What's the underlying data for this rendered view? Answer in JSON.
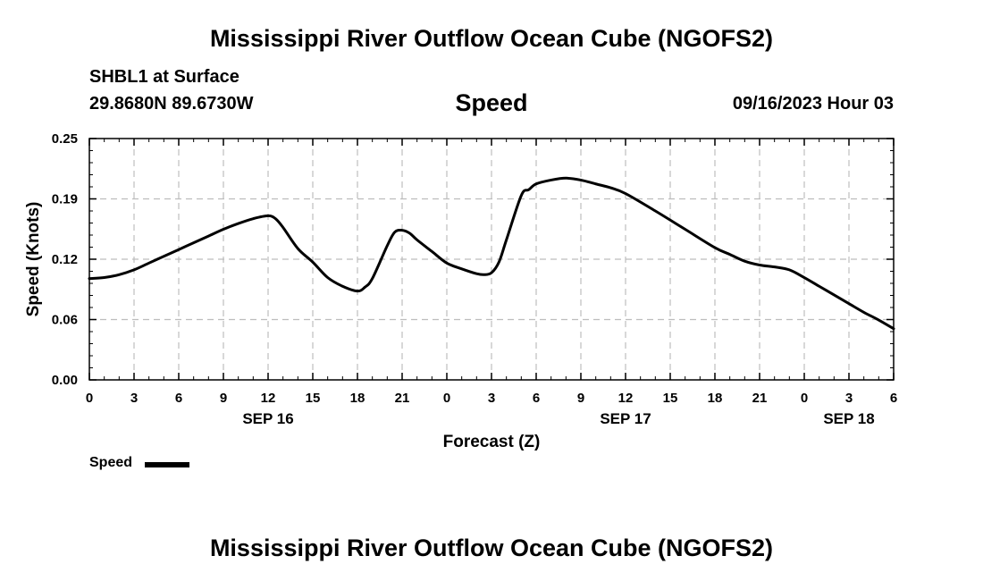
{
  "header": {
    "title": "Mississippi River Outflow Ocean Cube (NGOFS2)",
    "station": "SHBL1 at Surface",
    "coordinates": "29.8680N  89.6730W",
    "datetime": "09/16/2023 Hour 03"
  },
  "footer": {
    "title": "Mississippi River Outflow Ocean Cube (NGOFS2)"
  },
  "legend": {
    "label": "Speed"
  },
  "chart_data": {
    "type": "line",
    "title": "Speed",
    "xlabel": "Forecast (Z)",
    "ylabel": "Speed (Knots)",
    "xlim": [
      0,
      54
    ],
    "ylim": [
      0,
      0.25
    ],
    "yticks": [
      "0.00",
      "0.06",
      "0.12",
      "0.19",
      "0.25"
    ],
    "ytick_values": [
      0.0,
      0.0625,
      0.125,
      0.1875,
      0.25
    ],
    "xticks": [
      {
        "x": 0,
        "label": "0"
      },
      {
        "x": 3,
        "label": "3"
      },
      {
        "x": 6,
        "label": "6"
      },
      {
        "x": 9,
        "label": "9"
      },
      {
        "x": 12,
        "label": "12"
      },
      {
        "x": 15,
        "label": "15"
      },
      {
        "x": 18,
        "label": "18"
      },
      {
        "x": 21,
        "label": "21"
      },
      {
        "x": 24,
        "label": "0"
      },
      {
        "x": 27,
        "label": "3"
      },
      {
        "x": 30,
        "label": "6"
      },
      {
        "x": 33,
        "label": "9"
      },
      {
        "x": 36,
        "label": "12"
      },
      {
        "x": 39,
        "label": "15"
      },
      {
        "x": 42,
        "label": "18"
      },
      {
        "x": 45,
        "label": "21"
      },
      {
        "x": 48,
        "label": "0"
      },
      {
        "x": 51,
        "label": "3"
      },
      {
        "x": 54,
        "label": "6"
      }
    ],
    "date_labels": [
      {
        "x": 12,
        "label": "SEP 16"
      },
      {
        "x": 36,
        "label": "SEP 17"
      },
      {
        "x": 51,
        "label": "SEP 18"
      }
    ],
    "grid": true,
    "series": [
      {
        "name": "Speed",
        "color": "#000000",
        "x": [
          0,
          1,
          2,
          3,
          4,
          5,
          6,
          7,
          8,
          9,
          10,
          11,
          12,
          12.5,
          13,
          14,
          15,
          16,
          17,
          18,
          18.5,
          19,
          20,
          20.5,
          21,
          21.5,
          22,
          23,
          24,
          25,
          26,
          26.5,
          27,
          27.5,
          28,
          29,
          29.5,
          30,
          31,
          32,
          33,
          34,
          35,
          36,
          38,
          40,
          42,
          43,
          44,
          45,
          46,
          47,
          48,
          49,
          50,
          51,
          52,
          53,
          54
        ],
        "values": [
          0.105,
          0.106,
          0.109,
          0.114,
          0.121,
          0.128,
          0.135,
          0.142,
          0.149,
          0.156,
          0.162,
          0.167,
          0.17,
          0.167,
          0.158,
          0.136,
          0.122,
          0.106,
          0.097,
          0.092,
          0.096,
          0.105,
          0.139,
          0.153,
          0.155,
          0.152,
          0.145,
          0.133,
          0.121,
          0.115,
          0.11,
          0.109,
          0.111,
          0.122,
          0.145,
          0.191,
          0.197,
          0.203,
          0.207,
          0.209,
          0.207,
          0.203,
          0.199,
          0.193,
          0.175,
          0.156,
          0.137,
          0.13,
          0.123,
          0.119,
          0.117,
          0.114,
          0.106,
          0.097,
          0.088,
          0.079,
          0.07,
          0.062,
          0.053
        ]
      }
    ]
  }
}
